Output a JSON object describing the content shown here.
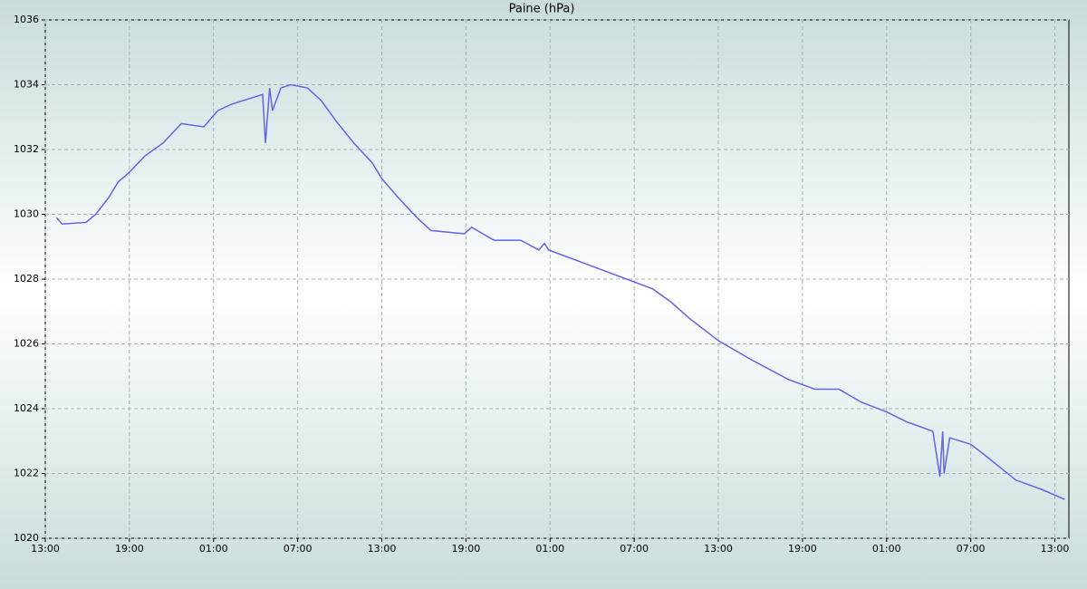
{
  "chart_data": {
    "type": "line",
    "title": "Paine (hPa)",
    "x": [
      0.8,
      1.2,
      2.9,
      3.6,
      4.5,
      5.2,
      6.0,
      7.1,
      8.4,
      9.7,
      11.3,
      12.3,
      13.3,
      15.5,
      15.7,
      16.0,
      16.2,
      16.8,
      17.5,
      18.7,
      19.7,
      20.7,
      22.0,
      23.3,
      24.0,
      25.2,
      26.5,
      27.5,
      29.9,
      30.4,
      32.0,
      33.9,
      35.2,
      35.6,
      35.9,
      43.3,
      44.6,
      45.9,
      48.0,
      50.4,
      53.0,
      54.9,
      56.6,
      58.2,
      60.0,
      61.4,
      63.3,
      63.8,
      64.0,
      64.1,
      64.5,
      66.0,
      67.2,
      69.2,
      71.1,
      72.7
    ],
    "series": [
      {
        "name": "Paine",
        "color": "#6464e6",
        "values": [
          1029.9,
          1029.7,
          1029.75,
          1030.0,
          1030.5,
          1031.0,
          1031.3,
          1031.8,
          1032.2,
          1032.8,
          1032.7,
          1033.2,
          1033.4,
          1033.7,
          1032.2,
          1033.9,
          1033.2,
          1033.9,
          1034.0,
          1033.9,
          1033.5,
          1032.9,
          1032.2,
          1031.6,
          1031.1,
          1030.5,
          1029.9,
          1029.5,
          1029.4,
          1029.6,
          1029.2,
          1029.2,
          1028.9,
          1029.1,
          1028.9,
          1027.7,
          1027.3,
          1026.8,
          1026.1,
          1025.5,
          1024.9,
          1024.6,
          1024.6,
          1024.2,
          1023.9,
          1023.6,
          1023.3,
          1021.9,
          1023.3,
          1022.0,
          1023.1,
          1022.9,
          1022.5,
          1021.8,
          1021.5,
          1021.2
        ]
      }
    ],
    "xlim": [
      0,
      73
    ],
    "xticks": [
      {
        "value": 0,
        "label": "13:00"
      },
      {
        "value": 6,
        "label": "19:00"
      },
      {
        "value": 12,
        "label": "01:00"
      },
      {
        "value": 18,
        "label": "07:00"
      },
      {
        "value": 24,
        "label": "13:00"
      },
      {
        "value": 30,
        "label": "19:00"
      },
      {
        "value": 36,
        "label": "01:00"
      },
      {
        "value": 42,
        "label": "07:00"
      },
      {
        "value": 48,
        "label": "13:00"
      },
      {
        "value": 54,
        "label": "19:00"
      },
      {
        "value": 60,
        "label": "01:00"
      },
      {
        "value": 66,
        "label": "07:00"
      },
      {
        "value": 72,
        "label": "13:00"
      }
    ],
    "ylim": [
      1020,
      1036
    ],
    "yticks": [
      1020,
      1022,
      1024,
      1026,
      1028,
      1030,
      1032,
      1034,
      1036
    ],
    "grid": true
  }
}
